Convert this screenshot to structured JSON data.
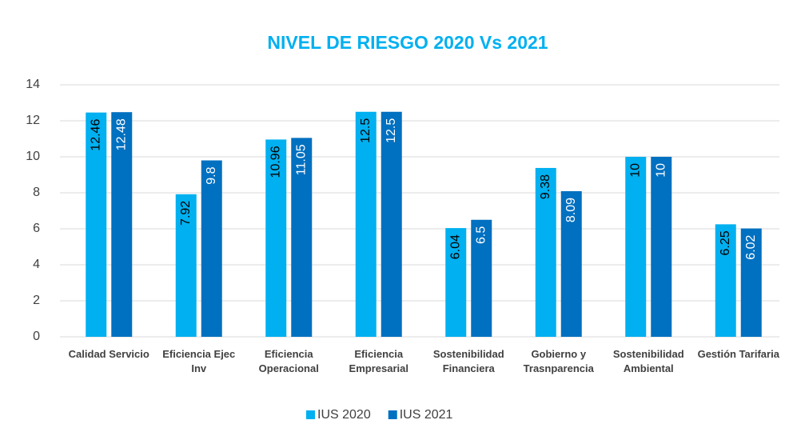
{
  "chart_data": {
    "type": "bar",
    "title": "NIVEL DE RIESGO 2020 Vs 2021",
    "categories": [
      "Calidad Servicio",
      "Eficiencia Ejec Inv",
      "Eficiencia Operacional",
      "Eficiencia Empresarial",
      "Sostenibilidad Financiera",
      "Gobierno y Trasnparencia",
      "Sostenibilidad Ambiental",
      "Gestión Tarifaria"
    ],
    "series": [
      {
        "name": "IUS 2020",
        "color": "#00b0f0",
        "values": [
          12.46,
          7.92,
          10.96,
          12.5,
          6.04,
          9.38,
          10,
          6.25
        ]
      },
      {
        "name": "IUS 2021",
        "color": "#0070c0",
        "values": [
          12.48,
          9.8,
          11.05,
          12.5,
          6.5,
          8.09,
          10,
          6.02
        ]
      }
    ],
    "ylim": [
      0,
      14
    ],
    "yticks": [
      0,
      2,
      4,
      6,
      8,
      10,
      12,
      14
    ],
    "grid": true,
    "legend": "bottom"
  }
}
